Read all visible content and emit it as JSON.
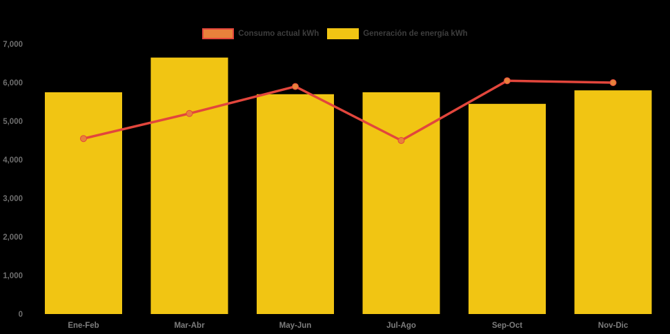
{
  "chart_data": {
    "type": "combo",
    "title": "",
    "xlabel": "",
    "ylabel": "",
    "categories": [
      "Ene-Feb",
      "Mar-Abr",
      "May-Jun",
      "Jul-Ago",
      "Sep-Oct",
      "Nov-Dic"
    ],
    "series": [
      {
        "name": "Consumo actual kWh",
        "type": "line",
        "values": [
          4550,
          5200,
          5900,
          4500,
          6050,
          6000
        ],
        "line_color": "#e2463c",
        "marker_color": "#e8813b"
      },
      {
        "name": "Generación de energía kWh",
        "type": "bar",
        "values": [
          5750,
          6650,
          5700,
          5750,
          5450,
          5800
        ],
        "color": "#f1c513"
      }
    ],
    "ylim": [
      0,
      7000
    ],
    "ytick_step": 1000,
    "ytick_labels": [
      "0",
      "1,000",
      "2,000",
      "3,000",
      "4,000",
      "5,000",
      "6,000",
      "7,000"
    ],
    "grid": false,
    "legend_position": "top-center",
    "background_color": "#000000",
    "y_axis_label_color": "#6e6e6e",
    "x_axis_label_color": "#7d7d7d",
    "legend_text_color": "#3d3d3d"
  }
}
